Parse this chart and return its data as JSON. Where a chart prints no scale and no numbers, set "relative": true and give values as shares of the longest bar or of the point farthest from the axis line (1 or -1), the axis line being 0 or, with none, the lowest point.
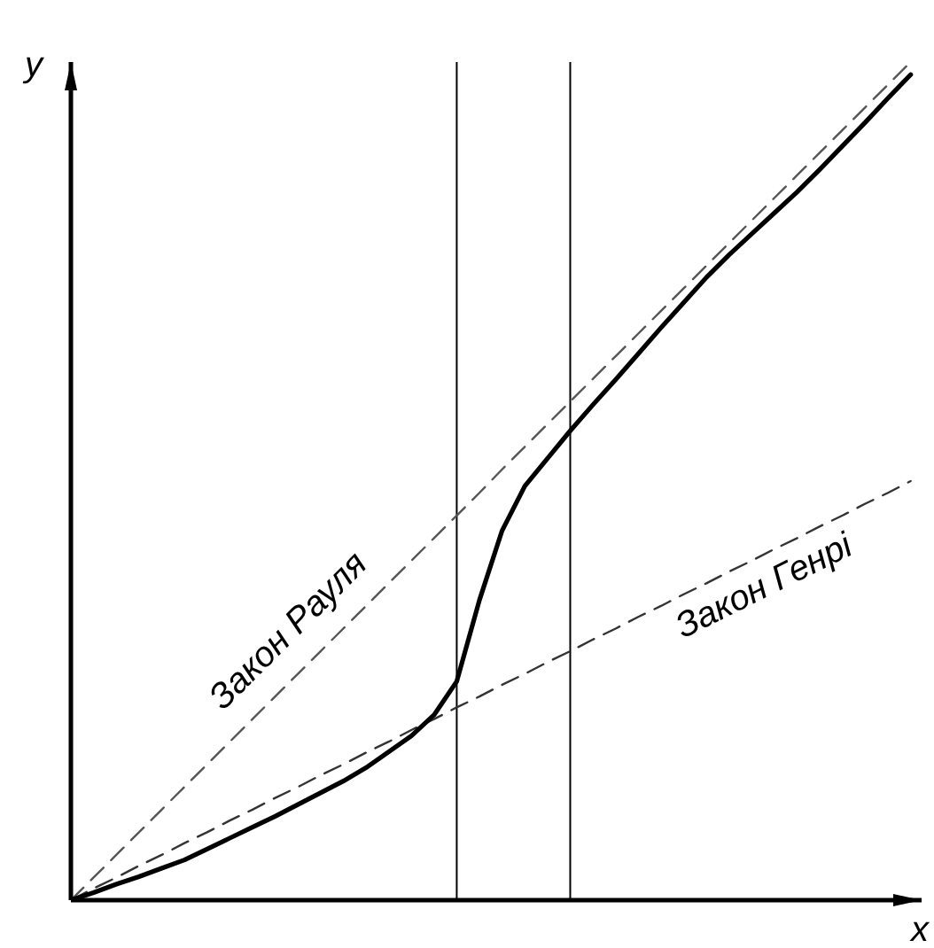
{
  "chart_data": {
    "type": "line",
    "relative": true,
    "xlabel": "x",
    "ylabel": "y",
    "grid": false,
    "legend": false,
    "marker": "none",
    "categories": [
      null,
      null,
      null,
      null,
      null,
      null,
      null,
      null,
      null,
      null,
      null,
      null,
      null,
      null,
      null,
      null,
      null,
      null,
      null,
      null,
      null,
      null,
      null,
      null,
      null,
      null,
      null,
      null,
      null,
      null,
      null,
      null,
      null,
      null,
      null,
      null,
      null,
      null
    ],
    "series": [
      {
        "name": "Закон Рауля",
        "color": "#555555",
        "line_style": "dashed",
        "values": [
          0,
          0.027,
          0.054,
          0.081,
          0.108,
          0.135,
          0.162,
          0.189,
          0.216,
          0.243,
          0.27,
          0.297,
          0.324,
          0.351,
          0.378,
          0.405,
          0.432,
          0.459,
          0.486,
          0.514,
          0.541,
          0.568,
          0.595,
          0.622,
          0.649,
          0.676,
          0.703,
          0.73,
          0.757,
          0.784,
          0.811,
          0.838,
          0.865,
          0.892,
          0.919,
          0.946,
          0.973,
          1
        ]
      },
      {
        "name": "Закон Генрі",
        "color": "#333333",
        "line_style": "dashed",
        "values": [
          0,
          0.014,
          0.027,
          0.041,
          0.054,
          0.068,
          0.081,
          0.095,
          0.108,
          0.122,
          0.135,
          0.149,
          0.162,
          0.176,
          0.189,
          0.203,
          0.216,
          0.23,
          0.243,
          0.257,
          0.27,
          0.284,
          0.297,
          0.311,
          0.324,
          0.338,
          0.351,
          0.365,
          0.378,
          0.392,
          0.405,
          0.419,
          0.432,
          0.446,
          0.459,
          0.473,
          0.486,
          0.5
        ]
      },
      {
        "color": "#000000",
        "line_style": "solid",
        "values": [
          0,
          0.009,
          0.019,
          0.028,
          0.038,
          0.048,
          0.061,
          0.074,
          0.087,
          0.1,
          0.114,
          0.128,
          0.142,
          0.158,
          0.177,
          0.196,
          0.221,
          0.261,
          0.358,
          0.441,
          0.494,
          0.527,
          0.56,
          0.591,
          0.621,
          0.652,
          0.683,
          0.713,
          0.743,
          0.77,
          0.795,
          0.82,
          0.845,
          0.872,
          0.9,
          0.928,
          0.957,
          0.985
        ]
      }
    ]
  }
}
